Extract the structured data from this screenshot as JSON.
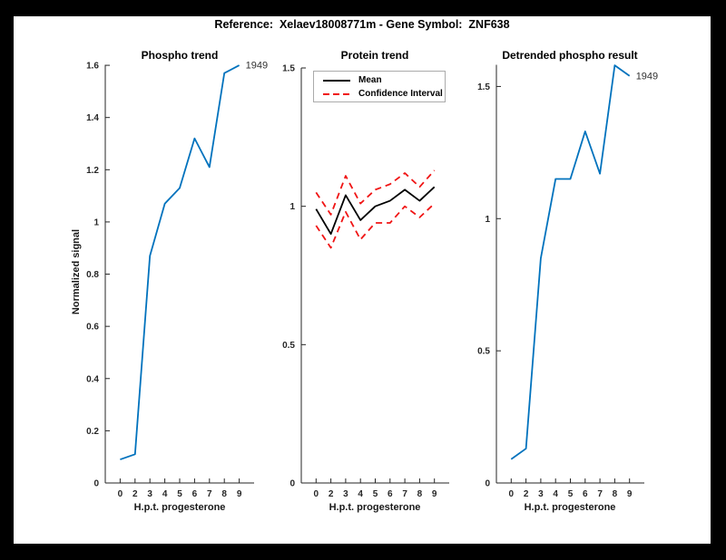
{
  "figure": {
    "title": "Reference:  Xelaev18008771m - Gene Symbol:  ZNF638",
    "frame_color": "#000000",
    "background": "#ffffff"
  },
  "axis": {
    "color": "#262626",
    "x_label": "H.p.t. progesterone",
    "y_label": "Normalized signal"
  },
  "chart_data": [
    {
      "type": "line",
      "title": "Phospho trend",
      "xlabel": "H.p.t. progesterone",
      "ylabel": "Normalized signal",
      "categories": [
        "0",
        "2",
        "3",
        "4",
        "5",
        "6",
        "7",
        "8",
        "9"
      ],
      "yticks": [
        "0",
        "0.2",
        "0.4",
        "0.6",
        "0.8",
        "1",
        "1.2",
        "1.4",
        "1.6"
      ],
      "ylim": [
        0,
        1.602
      ],
      "grid": false,
      "legend_position": "none",
      "series": [
        {
          "name": "phospho-trend",
          "color": "#0072bd",
          "style": "solid",
          "values": [
            0.09,
            0.11,
            0.87,
            1.07,
            1.13,
            1.32,
            1.21,
            1.57,
            1.6
          ]
        }
      ],
      "annotation": "1949"
    },
    {
      "type": "line",
      "title": "Protein trend",
      "xlabel": "H.p.t. progesterone",
      "ylabel": "",
      "categories": [
        "0",
        "2",
        "3",
        "4",
        "5",
        "6",
        "7",
        "8",
        "9"
      ],
      "yticks": [
        "0",
        "0.5",
        "1",
        "1.5"
      ],
      "ylim": [
        0,
        1.5
      ],
      "grid": false,
      "legend": [
        "Mean",
        "Confidence Interval"
      ],
      "legend_position": "top-left-inside",
      "series": [
        {
          "name": "protein-mean",
          "color": "#000000",
          "style": "solid",
          "values": [
            0.99,
            0.9,
            1.04,
            0.95,
            1.0,
            1.02,
            1.06,
            1.02,
            1.07
          ]
        },
        {
          "name": "ci-upper",
          "color": "#f01414",
          "style": "dashed",
          "values": [
            1.05,
            0.97,
            1.11,
            1.01,
            1.06,
            1.08,
            1.12,
            1.07,
            1.13
          ]
        },
        {
          "name": "ci-lower",
          "color": "#f01414",
          "style": "dashed",
          "values": [
            0.93,
            0.85,
            0.98,
            0.88,
            0.94,
            0.94,
            1.0,
            0.96,
            1.01
          ]
        }
      ]
    },
    {
      "type": "line",
      "title": "Detrended phospho result",
      "xlabel": "H.p.t. progesterone",
      "ylabel": "",
      "categories": [
        "0",
        "2",
        "3",
        "4",
        "5",
        "6",
        "7",
        "8",
        "9"
      ],
      "yticks": [
        "0",
        "0.5",
        "1",
        "1.5"
      ],
      "ylim": [
        0,
        1.582
      ],
      "grid": false,
      "legend_position": "none",
      "series": [
        {
          "name": "detrended-phospho",
          "color": "#0072bd",
          "style": "solid",
          "values": [
            0.09,
            0.13,
            0.85,
            1.15,
            1.15,
            1.33,
            1.17,
            1.58,
            1.54
          ]
        }
      ],
      "annotation": "1949"
    }
  ]
}
